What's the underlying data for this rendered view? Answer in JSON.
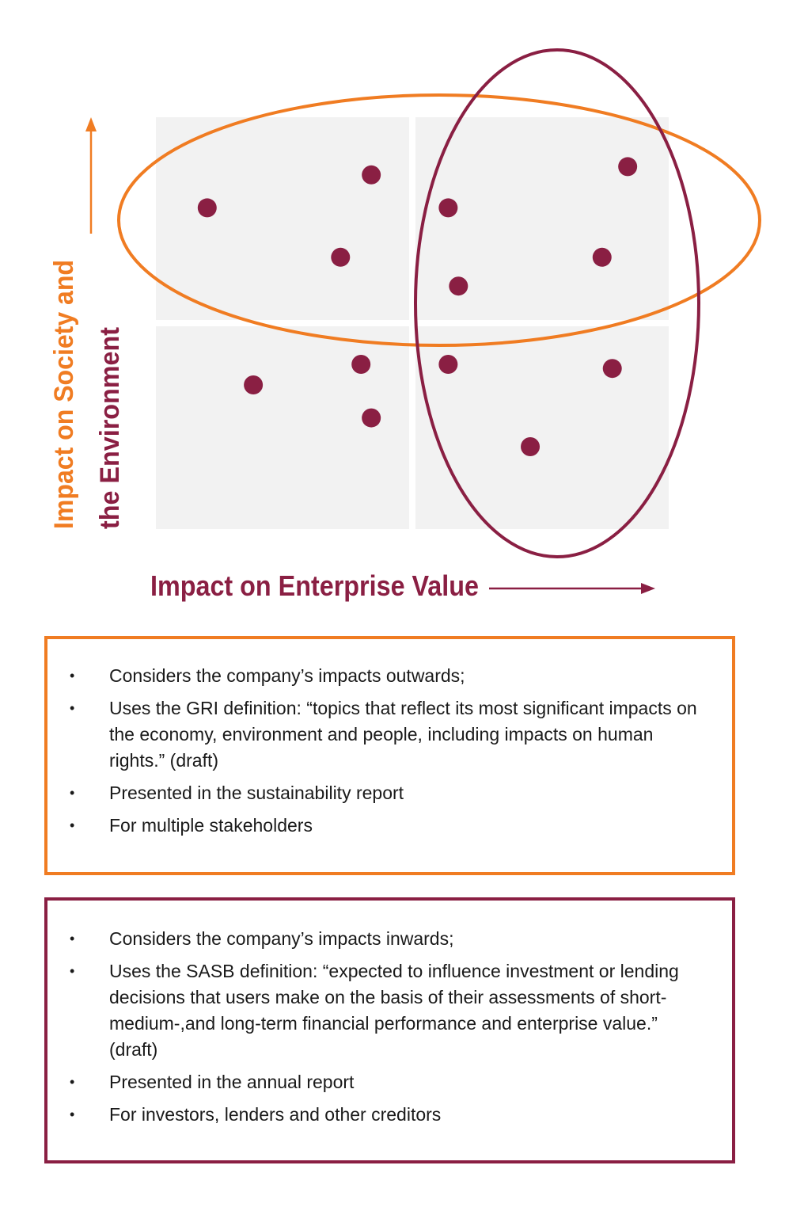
{
  "colors": {
    "orange": "#f07c22",
    "maroon": "#8a1f43",
    "quadrant": "#f2f2f2",
    "dot": "#8a1f43"
  },
  "axes": {
    "y_label_line1": "Impact on Society and",
    "y_label_line2": "the Environment",
    "x_label": "Impact on Enterprise Value"
  },
  "chart_data": {
    "type": "scatter",
    "xlabel": "Impact on Enterprise Value",
    "ylabel": "Impact on Society and the Environment",
    "xlim": [
      0,
      100
    ],
    "ylim": [
      0,
      100
    ],
    "points": [
      {
        "x": 10,
        "y": 78
      },
      {
        "x": 42,
        "y": 86
      },
      {
        "x": 36,
        "y": 66
      },
      {
        "x": 57,
        "y": 78
      },
      {
        "x": 59,
        "y": 59
      },
      {
        "x": 92,
        "y": 88
      },
      {
        "x": 87,
        "y": 66
      },
      {
        "x": 19,
        "y": 35
      },
      {
        "x": 40,
        "y": 40
      },
      {
        "x": 42,
        "y": 27
      },
      {
        "x": 57,
        "y": 40
      },
      {
        "x": 89,
        "y": 39
      },
      {
        "x": 73,
        "y": 20
      }
    ],
    "groups": [
      {
        "color": "#f07c22",
        "shape": "ellipse",
        "covers": "top row"
      },
      {
        "color": "#8a1f43",
        "shape": "ellipse",
        "covers": "right column"
      }
    ]
  },
  "orange_box": {
    "items": [
      "Considers the company’s impacts outwards;",
      "Uses the GRI definition: “topics that reflect its most significant impacts on the economy, environment and people, including impacts on human rights.” (draft)",
      "Presented in the sustainability report",
      "For multiple stakeholders"
    ]
  },
  "maroon_box": {
    "items": [
      "Considers  the company’s impacts inwards;",
      "Uses the SASB definition: “expected to influence investment or lending decisions that users make on the basis of their assessments of short-medium-,and long-term financial performance and enterprise value.” (draft)",
      "Presented in the annual report",
      "For investors, lenders and other creditors"
    ]
  },
  "bullet": "•"
}
